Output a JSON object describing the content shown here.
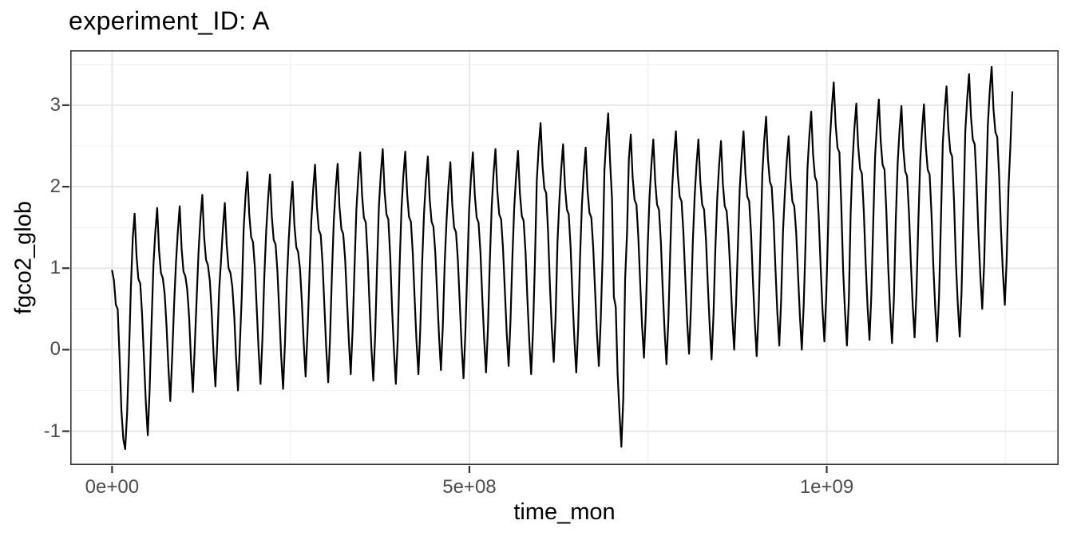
{
  "title": "experiment_ID: A",
  "colors": {
    "background": "#ffffff",
    "panel_background": "#ffffff",
    "panel_border": "#333333",
    "grid_major": "#e8e8e8",
    "grid_minor": "#f1f1f1",
    "tick_mark": "#333333",
    "tick_text": "#4d4d4d",
    "title_text": "#000000",
    "line": "#000000"
  },
  "chart_data": {
    "type": "line",
    "title": "experiment_ID: A",
    "xlabel": "time_mon",
    "ylabel": "fgco2_glob",
    "grid": true,
    "legend_position": "none",
    "xlim": [
      -58500000,
      1324500000
    ],
    "ylim": [
      -1.415,
      3.674
    ],
    "x_ticks": [
      {
        "value": 0,
        "label": "0e+00"
      },
      {
        "value": 500000000,
        "label": "5e+08"
      },
      {
        "value": 1000000000,
        "label": "1e+09"
      }
    ],
    "y_ticks": [
      {
        "value": -1,
        "label": "-1"
      },
      {
        "value": 0,
        "label": "0"
      },
      {
        "value": 1,
        "label": "1"
      },
      {
        "value": 2,
        "label": "2"
      },
      {
        "value": 3,
        "label": "3"
      }
    ],
    "x_minor_ticks": [
      250000000,
      750000000,
      1250000000
    ],
    "y_minor_ticks": [
      -0.5,
      0.5,
      1.5,
      2.5,
      3.5
    ],
    "series": [
      {
        "name": "fgco2_glob",
        "x_start": 0,
        "x_step": 2629800,
        "y": [
          0.97,
          0.85,
          0.55,
          0.5,
          -0.1,
          -0.75,
          -1.1,
          -1.22,
          -0.78,
          -0.05,
          0.75,
          1.37,
          1.67,
          1.15,
          0.87,
          0.81,
          0.43,
          -0.13,
          -0.65,
          -1.05,
          -0.5,
          0.31,
          1.04,
          1.44,
          1.74,
          1.22,
          0.94,
          0.88,
          0.68,
          0.29,
          -0.23,
          -0.63,
          -0.08,
          0.56,
          1.06,
          1.46,
          1.76,
          1.24,
          0.96,
          0.9,
          0.74,
          0.4,
          -0.12,
          -0.52,
          0.03,
          0.62,
          1.2,
          1.6,
          1.9,
          1.38,
          1.1,
          1.04,
          0.85,
          0.47,
          -0.05,
          -0.45,
          0.1,
          0.73,
          1.1,
          1.5,
          1.8,
          1.28,
          1.0,
          0.94,
          0.77,
          0.42,
          -0.1,
          -0.5,
          0.05,
          0.65,
          1.48,
          1.88,
          2.18,
          1.66,
          1.38,
          1.32,
          1.0,
          0.5,
          -0.02,
          -0.42,
          0.13,
          0.88,
          1.45,
          1.85,
          2.15,
          1.63,
          1.35,
          1.29,
          0.96,
          0.44,
          -0.08,
          -0.48,
          0.07,
          0.84,
          1.36,
          1.76,
          2.06,
          1.54,
          1.26,
          1.2,
          0.99,
          0.59,
          0.07,
          -0.33,
          0.22,
          0.87,
          1.57,
          1.97,
          2.27,
          1.75,
          1.47,
          1.41,
          1.06,
          0.52,
          0.0,
          -0.4,
          0.15,
          0.94,
          1.58,
          1.98,
          2.28,
          1.76,
          1.48,
          1.42,
          1.11,
          0.62,
          0.1,
          -0.3,
          0.25,
          0.99,
          1.72,
          2.12,
          2.42,
          1.9,
          1.62,
          1.56,
          1.14,
          0.54,
          0.02,
          -0.38,
          0.17,
          1.02,
          1.76,
          2.16,
          2.46,
          1.94,
          1.66,
          1.6,
          1.14,
          0.5,
          -0.02,
          -0.42,
          0.13,
          1.02,
          1.73,
          2.13,
          2.43,
          1.91,
          1.63,
          1.57,
          1.19,
          0.62,
          0.1,
          -0.3,
          0.25,
          1.07,
          1.67,
          2.07,
          2.37,
          1.85,
          1.57,
          1.51,
          1.18,
          0.67,
          0.15,
          -0.25,
          0.3,
          1.06,
          1.6,
          2.0,
          2.3,
          1.78,
          1.5,
          1.44,
          1.1,
          0.57,
          0.05,
          -0.35,
          0.2,
          0.98,
          1.72,
          2.12,
          2.42,
          1.9,
          1.62,
          1.56,
          1.19,
          0.64,
          0.12,
          -0.28,
          0.27,
          1.07,
          1.76,
          2.16,
          2.46,
          1.94,
          1.66,
          1.6,
          1.25,
          0.72,
          0.2,
          -0.2,
          0.35,
          1.13,
          1.74,
          2.14,
          2.44,
          1.92,
          1.64,
          1.58,
          1.19,
          0.62,
          0.1,
          -0.3,
          0.25,
          1.07,
          2.08,
          2.48,
          2.78,
          2.26,
          1.98,
          1.92,
          1.44,
          0.77,
          0.25,
          -0.15,
          0.4,
          1.32,
          1.82,
          2.22,
          2.52,
          2.0,
          1.72,
          1.66,
          1.24,
          0.64,
          0.12,
          -0.28,
          0.27,
          1.12,
          1.78,
          2.18,
          2.48,
          1.96,
          1.68,
          1.62,
          1.26,
          0.72,
          0.2,
          -0.2,
          0.35,
          1.14,
          2.2,
          2.6,
          2.9,
          2.3,
          1.85,
          0.65,
          0.52,
          -0.3,
          -0.79,
          -1.19,
          -0.6,
          0.86,
          1.43,
          2.34,
          2.64,
          2.12,
          1.84,
          1.78,
          1.39,
          0.82,
          0.3,
          -0.1,
          0.45,
          1.27,
          1.88,
          2.28,
          2.58,
          2.06,
          1.78,
          1.72,
          1.32,
          0.74,
          0.22,
          -0.18,
          0.37,
          1.2,
          1.98,
          2.38,
          2.68,
          2.16,
          1.88,
          1.82,
          1.44,
          0.87,
          0.35,
          -0.05,
          0.5,
          1.32,
          1.88,
          2.28,
          2.58,
          2.06,
          1.78,
          1.72,
          1.35,
          0.8,
          0.28,
          -0.12,
          0.43,
          1.23,
          1.86,
          2.26,
          2.56,
          2.04,
          1.76,
          1.7,
          1.4,
          0.92,
          0.4,
          0.0,
          0.55,
          1.28,
          1.98,
          2.38,
          2.68,
          2.16,
          1.88,
          1.82,
          1.42,
          0.84,
          0.32,
          -0.08,
          0.47,
          1.3,
          2.16,
          2.56,
          2.86,
          2.34,
          2.06,
          2.0,
          1.58,
          0.97,
          0.45,
          0.05,
          0.6,
          1.46,
          1.92,
          2.32,
          2.62,
          2.1,
          1.82,
          1.76,
          1.43,
          0.92,
          0.4,
          0.0,
          0.55,
          1.31,
          2.22,
          2.62,
          2.92,
          2.4,
          2.12,
          2.06,
          1.63,
          1.02,
          0.5,
          0.1,
          0.65,
          1.51,
          2.58,
          2.98,
          3.28,
          2.76,
          2.48,
          2.42,
          1.79,
          0.97,
          0.45,
          0.05,
          0.6,
          1.67,
          2.32,
          2.72,
          3.02,
          2.5,
          2.22,
          2.16,
          1.69,
          1.04,
          0.52,
          0.12,
          0.67,
          1.57,
          2.37,
          2.77,
          3.07,
          2.55,
          2.27,
          2.21,
          1.7,
          1.0,
          0.48,
          0.08,
          0.63,
          1.58,
          2.29,
          2.69,
          2.99,
          2.47,
          2.19,
          2.13,
          1.69,
          1.07,
          0.55,
          0.15,
          0.7,
          1.57,
          2.31,
          2.71,
          3.01,
          2.49,
          2.21,
          2.15,
          1.68,
          1.02,
          0.5,
          0.1,
          0.65,
          1.56,
          2.53,
          2.93,
          3.23,
          2.71,
          2.43,
          2.37,
          1.82,
          1.08,
          0.56,
          0.16,
          0.71,
          1.7,
          2.68,
          3.08,
          3.38,
          2.86,
          2.58,
          2.52,
          2.06,
          1.42,
          0.9,
          0.5,
          1.05,
          1.94,
          2.77,
          3.17,
          3.47,
          2.95,
          2.67,
          2.61,
          2.13,
          1.47,
          0.95,
          0.55,
          1.1,
          2.01,
          2.5,
          3.16
        ]
      }
    ]
  }
}
